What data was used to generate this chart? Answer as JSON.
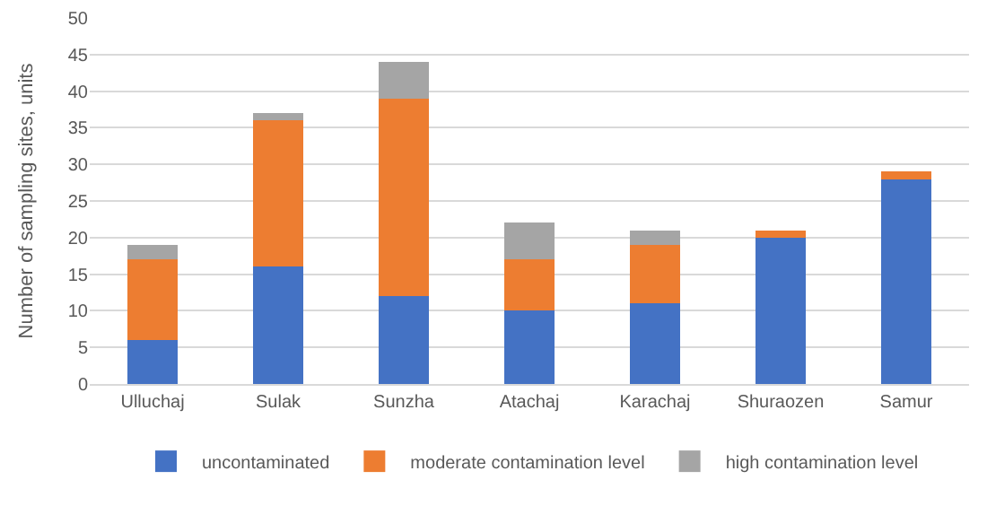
{
  "chart_data": {
    "type": "bar",
    "stacked": true,
    "ylabel": "Number of sampling sites, units",
    "categories": [
      "Ulluchaj",
      "Sulak",
      "Sunzha",
      "Atachaj",
      "Karachaj",
      "Shuraozen",
      "Samur"
    ],
    "series": [
      {
        "name": "uncontaminated",
        "color": "#4472c4",
        "values": [
          6,
          16,
          12,
          10,
          11,
          20,
          28
        ]
      },
      {
        "name": "moderate contamination level",
        "color": "#ed7d31",
        "values": [
          11,
          20,
          27,
          7,
          8,
          1,
          1
        ]
      },
      {
        "name": "high contamination level",
        "color": "#a5a5a5",
        "values": [
          2,
          1,
          5,
          5,
          2,
          0,
          0
        ]
      }
    ],
    "ylim": [
      0,
      50
    ],
    "yticks": [
      0,
      5,
      10,
      15,
      20,
      25,
      30,
      35,
      40,
      45,
      50
    ],
    "grid": "y",
    "legend": "bottom"
  }
}
